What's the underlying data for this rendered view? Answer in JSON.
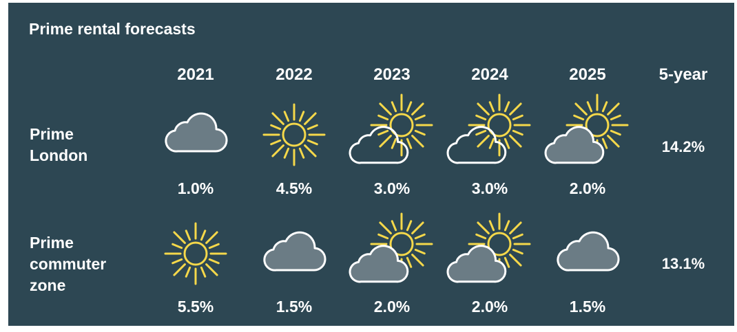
{
  "title": "Prime rental forecasts",
  "columns": [
    "2021",
    "2022",
    "2023",
    "2024",
    "2025",
    "5-year"
  ],
  "rows": [
    {
      "label": "Prime\nLondon",
      "values": [
        "1.0%",
        "4.5%",
        "3.0%",
        "3.0%",
        "2.0%"
      ],
      "total": "14.2%",
      "icons": [
        "cloud-icon",
        "sun-icon",
        "sun-behind-cloud-icon",
        "sun-behind-cloud-icon",
        "sun-behind-dark-cloud-icon"
      ]
    },
    {
      "label": "Prime\ncommuter\nzone",
      "values": [
        "5.5%",
        "1.5%",
        "2.0%",
        "2.0%",
        "1.5%"
      ],
      "total": "13.1%",
      "icons": [
        "sun-icon",
        "cloud-icon",
        "sun-behind-dark-cloud-icon",
        "sun-behind-dark-cloud-icon",
        "cloud-icon"
      ]
    }
  ],
  "chart_data": {
    "type": "table",
    "title": "Prime rental forecasts",
    "categories": [
      "2021",
      "2022",
      "2023",
      "2024",
      "2025"
    ],
    "series": [
      {
        "name": "Prime London",
        "values": [
          1.0,
          4.5,
          3.0,
          3.0,
          2.0
        ],
        "five_year": 14.2
      },
      {
        "name": "Prime commuter zone",
        "values": [
          5.5,
          1.5,
          2.0,
          2.0,
          1.5
        ],
        "five_year": 13.1
      }
    ],
    "unit": "%"
  },
  "colors": {
    "background": "#2d4753",
    "text": "#ffffff",
    "sun": "#f5d84a",
    "cloud_fill": "#6b7c85",
    "cloud_stroke": "#ffffff"
  }
}
